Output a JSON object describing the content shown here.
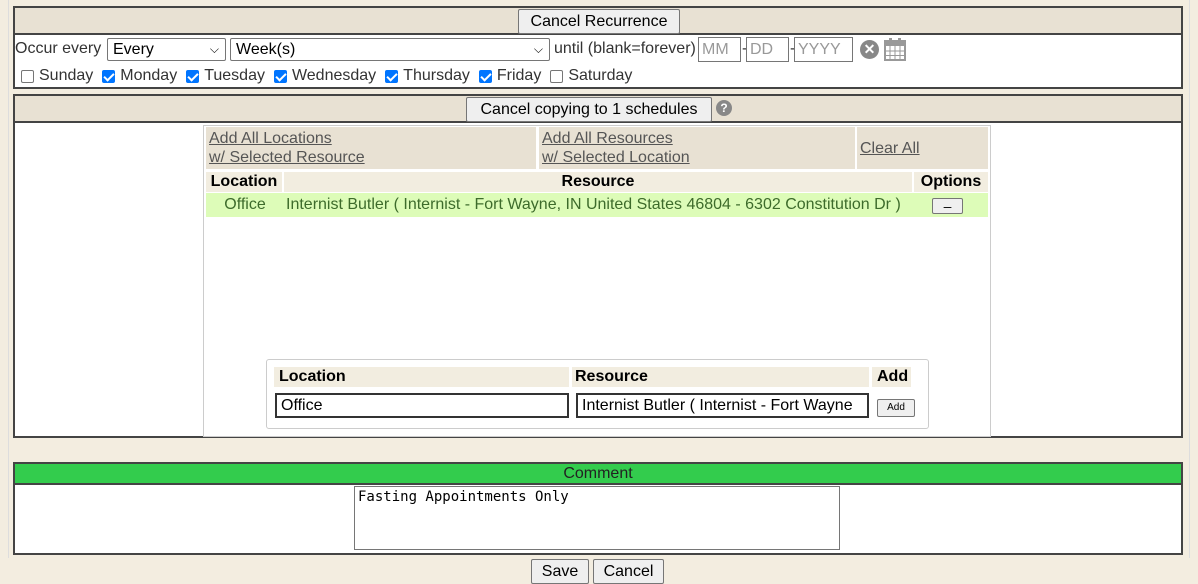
{
  "recurrence": {
    "cancel_label": "Cancel Recurrence",
    "occur_label": "Occur every",
    "frequency": "Every",
    "unit": "Week(s)",
    "until_label": "until (blank=forever)",
    "mm_placeholder": "MM",
    "dd_placeholder": "DD",
    "yyyy_placeholder": "YYYY",
    "days": [
      {
        "label": "Sunday",
        "checked": false
      },
      {
        "label": "Monday",
        "checked": true
      },
      {
        "label": "Tuesday",
        "checked": true
      },
      {
        "label": "Wednesday",
        "checked": true
      },
      {
        "label": "Thursday",
        "checked": true
      },
      {
        "label": "Friday",
        "checked": true
      },
      {
        "label": "Saturday",
        "checked": false
      }
    ]
  },
  "copying": {
    "cancel_label": "Cancel copying to 1 schedules",
    "links": {
      "add_locations_1": "Add All Locations",
      "add_locations_2": "w/ Selected Resource",
      "add_resources_1": "Add All Resources",
      "add_resources_2": "w/ Selected Location",
      "clear_all": "Clear All"
    },
    "table": {
      "headers": [
        "Location",
        "Resource",
        "Options"
      ],
      "rows": [
        {
          "location": "Office",
          "resource": "Internist Butler ( Internist - Fort Wayne, IN United States 46804 - 6302 Constitution Dr )",
          "option": "–"
        }
      ]
    },
    "add_form": {
      "headers": [
        "Location",
        "Resource",
        "Add"
      ],
      "location_value": "Office",
      "resource_value": "Internist Butler ( Internist -  Fort Wayne",
      "add_label": "Add"
    }
  },
  "comment": {
    "header": "Comment",
    "value": "Fasting Appointments Only"
  },
  "footer": {
    "save_label": "Save",
    "cancel_label": "Cancel"
  },
  "colors": {
    "header_bg": "#e8e1d3",
    "comment_header": "#33cc4d",
    "row_highlight": "#ddfcb8"
  }
}
